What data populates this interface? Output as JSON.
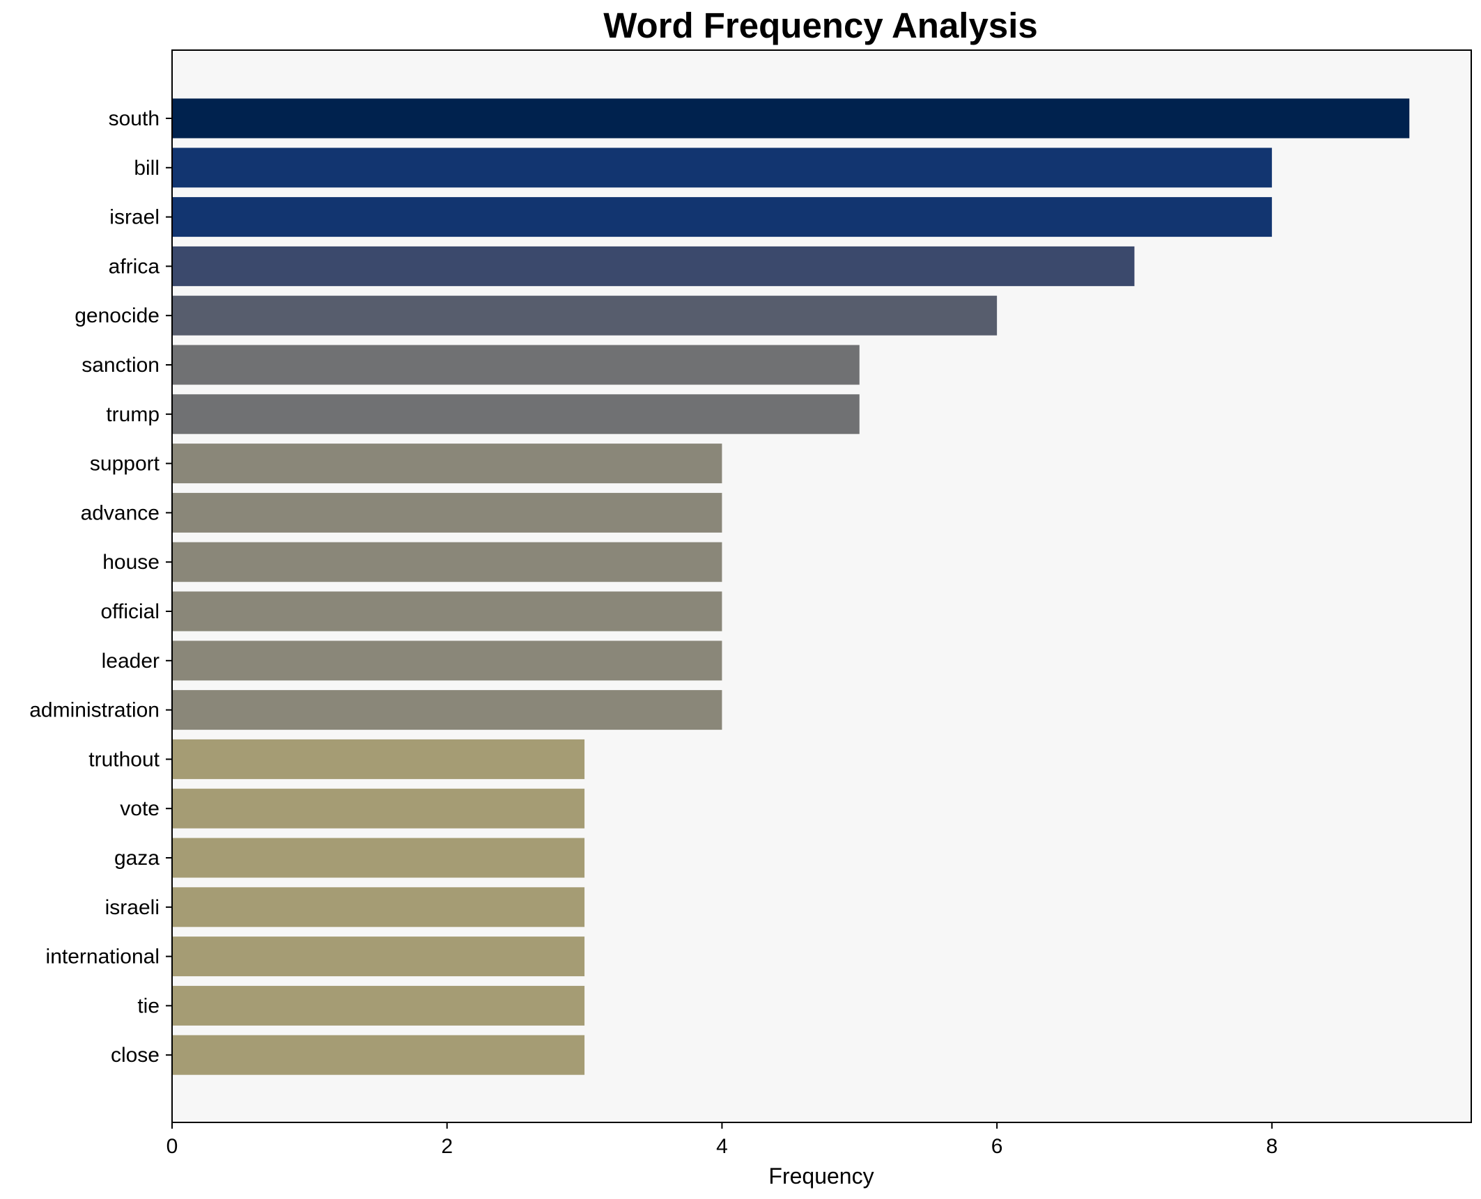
{
  "chart_data": {
    "type": "bar",
    "orientation": "horizontal",
    "title": "Word Frequency Analysis",
    "xlabel": "Frequency",
    "ylabel": "",
    "xlim": [
      0,
      9.45
    ],
    "xticks": [
      0,
      2,
      4,
      6,
      8
    ],
    "grid": false,
    "legend": "none",
    "plot_background": "#f7f7f7",
    "categories": [
      "south",
      "bill",
      "israel",
      "africa",
      "genocide",
      "sanction",
      "trump",
      "support",
      "advance",
      "house",
      "official",
      "leader",
      "administration",
      "truthout",
      "vote",
      "gaza",
      "israeli",
      "international",
      "tie",
      "close"
    ],
    "values": [
      9,
      8,
      8,
      7,
      6,
      5,
      5,
      4,
      4,
      4,
      4,
      4,
      4,
      3,
      3,
      3,
      3,
      3,
      3,
      3
    ],
    "colors": [
      "#00224e",
      "#123570",
      "#123570",
      "#3b496c",
      "#575d6d",
      "#707173",
      "#707173",
      "#8a8779",
      "#8a8779",
      "#8a8779",
      "#8a8779",
      "#8a8779",
      "#8a8779",
      "#a59c74",
      "#a59c74",
      "#a59c74",
      "#a59c74",
      "#a59c74",
      "#a59c74",
      "#a59c74"
    ]
  }
}
